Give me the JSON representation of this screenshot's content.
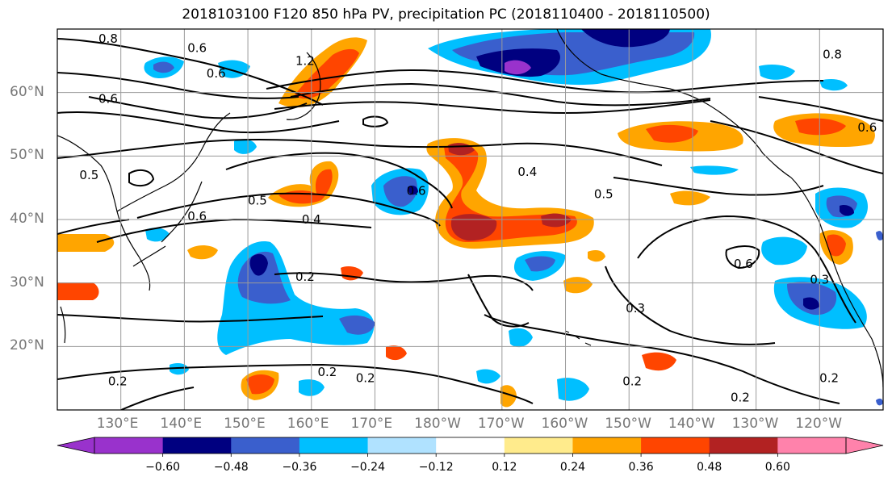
{
  "title": "2018103100 F120 850 hPa PV, precipitation PC (2018110400 - 2018110500)",
  "map": {
    "lon_range": [
      120,
      250
    ],
    "lat_range": [
      10,
      70
    ],
    "lat_labels": [
      {
        "lat": 60,
        "text": "60°N"
      },
      {
        "lat": 50,
        "text": "50°N"
      },
      {
        "lat": 40,
        "text": "40°N"
      },
      {
        "lat": 30,
        "text": "30°N"
      },
      {
        "lat": 20,
        "text": "20°N"
      }
    ],
    "lon_labels": [
      {
        "lon": 130,
        "text": "130°E"
      },
      {
        "lon": 140,
        "text": "140°E"
      },
      {
        "lon": 150,
        "text": "150°E"
      },
      {
        "lon": 160,
        "text": "160°E"
      },
      {
        "lon": 170,
        "text": "170°E"
      },
      {
        "lon": 180,
        "text": "180°W"
      },
      {
        "lon": 190,
        "text": "170°W"
      },
      {
        "lon": 200,
        "text": "160°W"
      },
      {
        "lon": 210,
        "text": "150°W"
      },
      {
        "lon": 220,
        "text": "140°W"
      },
      {
        "lon": 230,
        "text": "130°W"
      },
      {
        "lon": 240,
        "text": "120°W"
      }
    ],
    "contour_labels": [
      {
        "lon": 128,
        "lat": 68.5,
        "text": "0.8"
      },
      {
        "lon": 145,
        "lat": 63,
        "text": "0.6"
      },
      {
        "lon": 159,
        "lat": 65,
        "text": "1.2"
      },
      {
        "lon": 142,
        "lat": 67,
        "text": "0.6"
      },
      {
        "lon": 128,
        "lat": 59,
        "text": "0.6"
      },
      {
        "lon": 194,
        "lat": 47.5,
        "text": "0.4"
      },
      {
        "lon": 176.5,
        "lat": 44.5,
        "text": "0.6"
      },
      {
        "lon": 160,
        "lat": 40,
        "text": "0.4"
      },
      {
        "lon": 151.5,
        "lat": 43,
        "text": "0.5"
      },
      {
        "lon": 206,
        "lat": 44,
        "text": "0.5"
      },
      {
        "lon": 142,
        "lat": 40.5,
        "text": "0.6"
      },
      {
        "lon": 125,
        "lat": 47,
        "text": "0.5"
      },
      {
        "lon": 159,
        "lat": 31,
        "text": "0.2"
      },
      {
        "lon": 162.5,
        "lat": 16,
        "text": "0.2"
      },
      {
        "lon": 168.5,
        "lat": 15,
        "text": "0.2"
      },
      {
        "lon": 129.5,
        "lat": 14.5,
        "text": "0.2"
      },
      {
        "lon": 210.5,
        "lat": 14.5,
        "text": "0.2"
      },
      {
        "lon": 227.5,
        "lat": 12,
        "text": "0.2"
      },
      {
        "lon": 228,
        "lat": 33,
        "text": "0.6"
      },
      {
        "lon": 240,
        "lat": 30.5,
        "text": "0.3"
      },
      {
        "lon": 211,
        "lat": 26,
        "text": "0.3"
      },
      {
        "lon": 247.5,
        "lat": 54.5,
        "text": "0.6"
      },
      {
        "lon": 241.5,
        "lat": 15,
        "text": "0.2"
      },
      {
        "lon": 242,
        "lat": 66,
        "text": "0.8"
      }
    ],
    "fill_colors": {
      "neg_060": "#9932cc",
      "neg_048": "#000080",
      "neg_036": "#3a5fcd",
      "neg_024": "#00bfff",
      "neg_012": "#b0e2ff",
      "pos_012": "#ffeb8c",
      "pos_024": "#ffa500",
      "pos_036": "#ff4500",
      "pos_048": "#b22222",
      "pos_060": "#ff82ab"
    }
  },
  "colorbar": {
    "colors": [
      "#9932cc",
      "#000080",
      "#3a5fcd",
      "#00bfff",
      "#b0e2ff",
      "#ffffff",
      "#ffeb8c",
      "#ffa500",
      "#ff4500",
      "#b22222",
      "#ff82ab"
    ],
    "ticks": [
      "−0.60",
      "−0.48",
      "−0.36",
      "−0.24",
      "−0.12",
      "0.12",
      "0.24",
      "0.36",
      "0.48",
      "0.60"
    ]
  }
}
